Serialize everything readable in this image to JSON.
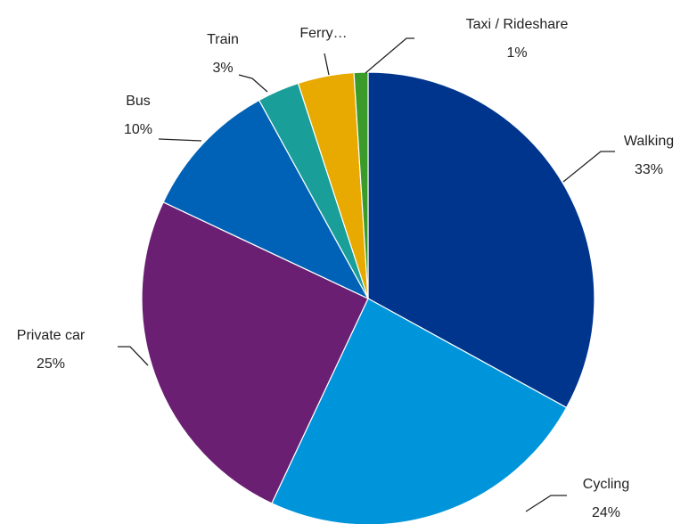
{
  "chart_data": {
    "type": "pie",
    "categories": [
      "Walking",
      "Cycling",
      "Private car",
      "Bus",
      "Train",
      "Ferry…",
      "Taxi / Rideshare"
    ],
    "values": [
      33,
      24,
      25,
      10,
      3,
      4,
      1
    ],
    "value_labels": [
      "33%",
      "24%",
      "25%",
      "10%",
      "3%",
      null,
      "1%"
    ],
    "colors": [
      "#00358e",
      "#0095da",
      "#6a1f72",
      "#0062b7",
      "#1a9e99",
      "#e8a900",
      "#3a9b2b"
    ]
  }
}
